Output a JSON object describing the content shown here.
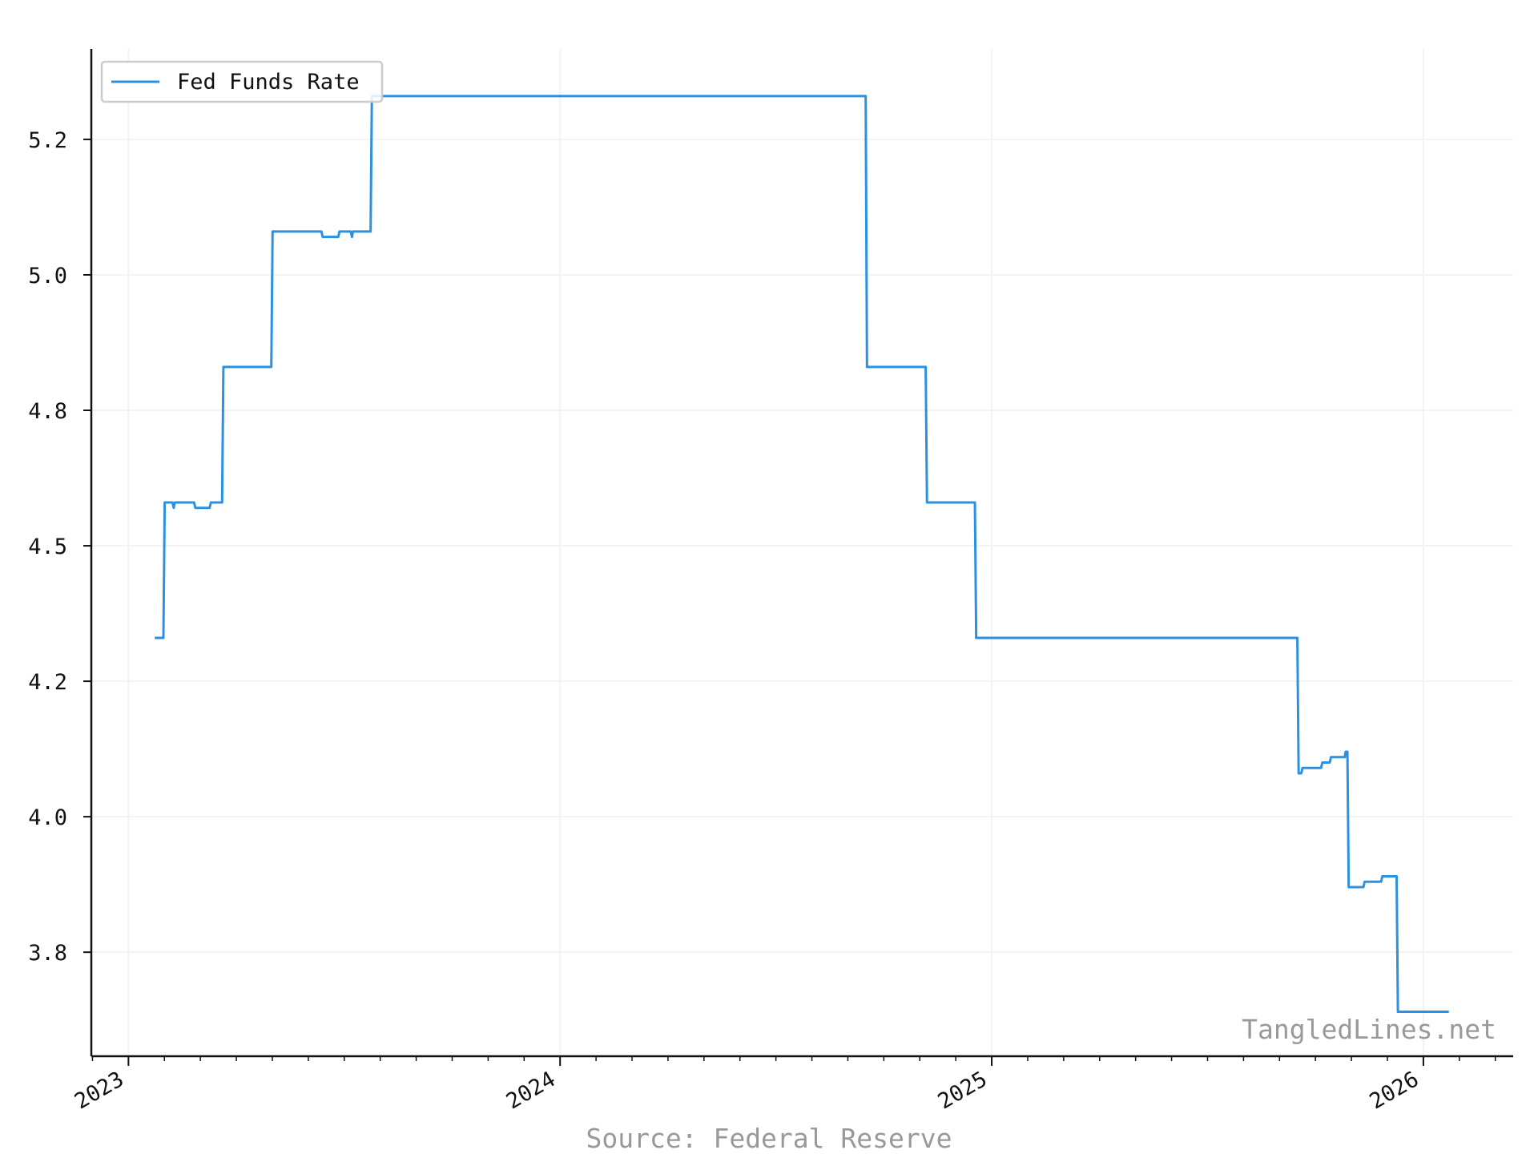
{
  "chart_data": {
    "type": "line",
    "x": [
      2023.061,
      2023.081,
      2023.084,
      2023.102,
      2023.105,
      2023.107,
      2023.152,
      2023.155,
      2023.188,
      2023.191,
      2023.217,
      2023.22,
      2023.331,
      2023.334,
      2023.447,
      2023.45,
      2023.486,
      2023.489,
      2023.515,
      2023.518,
      2023.52,
      2023.561,
      2023.564,
      2024.708,
      2024.711,
      2024.847,
      2024.85,
      2024.961,
      2024.964,
      2025.708,
      2025.711,
      2025.717,
      2025.72,
      2025.763,
      2025.766,
      2025.783,
      2025.786,
      2025.818,
      2025.82,
      2025.824,
      2025.827,
      2025.861,
      2025.864,
      2025.902,
      2025.905,
      2025.938,
      2025.941,
      2026.059
    ],
    "series": [
      {
        "name": "Fed Funds Rate",
        "color": "#2b91e0",
        "values": [
          4.33,
          4.33,
          4.58,
          4.58,
          4.57,
          4.58,
          4.58,
          4.57,
          4.57,
          4.58,
          4.58,
          4.83,
          4.83,
          5.08,
          5.08,
          5.07,
          5.07,
          5.08,
          5.08,
          5.07,
          5.08,
          5.08,
          5.33,
          5.33,
          4.83,
          4.83,
          4.58,
          4.58,
          4.33,
          4.33,
          4.08,
          4.08,
          4.09,
          4.09,
          4.1,
          4.1,
          4.11,
          4.11,
          4.12,
          4.12,
          3.87,
          3.87,
          3.88,
          3.88,
          3.89,
          3.89,
          3.64,
          3.64
        ]
      }
    ],
    "xlim": [
      2022.914,
      2026.208
    ],
    "xticks": [
      2023,
      2024,
      2025,
      2026
    ],
    "ylim": [
      3.558,
      5.417
    ],
    "yticks": [
      {
        "value": 3.75,
        "label": "3.8"
      },
      {
        "value": 4.0,
        "label": "4.0"
      },
      {
        "value": 4.25,
        "label": "4.2"
      },
      {
        "value": 4.5,
        "label": "4.5"
      },
      {
        "value": 4.75,
        "label": "4.8"
      },
      {
        "value": 5.0,
        "label": "5.0"
      },
      {
        "value": 5.25,
        "label": "5.2"
      }
    ],
    "grid": true,
    "legend": "upper left",
    "watermark": "TangledLines.net",
    "source": "Source: Federal Reserve"
  }
}
